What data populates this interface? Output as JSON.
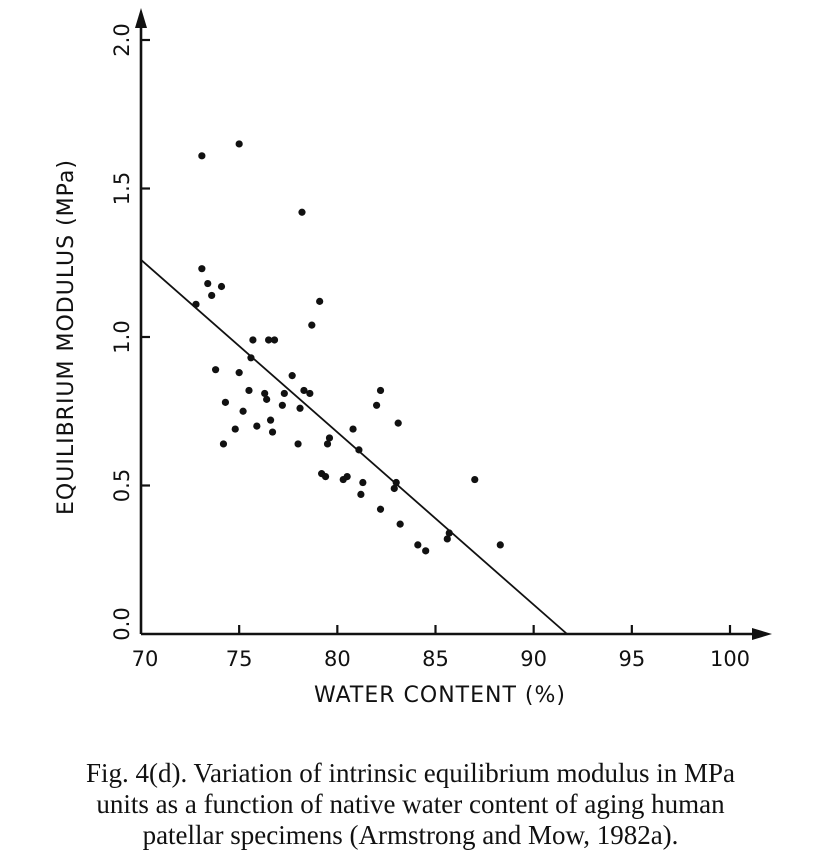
{
  "chart_data": {
    "type": "scatter",
    "title": "",
    "xlabel": "WATER CONTENT (%)",
    "ylabel": "EQUILIBRIUM MODULUS (MPa)",
    "xlim": [
      70,
      100
    ],
    "ylim": [
      0,
      2.0
    ],
    "x_ticks": [
      70,
      75,
      80,
      85,
      90,
      95,
      100
    ],
    "x_tick_labels": [
      "70",
      "75",
      "80",
      "85",
      "90",
      "95",
      "100"
    ],
    "y_ticks": [
      0,
      0.5,
      1.0,
      1.5,
      2.0
    ],
    "y_tick_labels": [
      "0.0",
      "0.5",
      "1.0",
      "1.5",
      "2.0"
    ],
    "grid": false,
    "fit_line": {
      "x": [
        70,
        91.7
      ],
      "y": [
        1.26,
        0.0
      ]
    },
    "points": [
      [
        72.8,
        1.11
      ],
      [
        73.1,
        1.23
      ],
      [
        73.1,
        1.61
      ],
      [
        73.4,
        1.18
      ],
      [
        73.6,
        1.14
      ],
      [
        73.8,
        0.89
      ],
      [
        74.1,
        1.17
      ],
      [
        74.2,
        0.64
      ],
      [
        74.3,
        0.78
      ],
      [
        74.8,
        0.69
      ],
      [
        75.0,
        1.65
      ],
      [
        75.0,
        0.88
      ],
      [
        75.2,
        0.75
      ],
      [
        75.5,
        0.82
      ],
      [
        75.6,
        0.93
      ],
      [
        75.7,
        0.99
      ],
      [
        75.9,
        0.7
      ],
      [
        76.3,
        0.81
      ],
      [
        76.4,
        0.79
      ],
      [
        76.5,
        0.99
      ],
      [
        76.6,
        0.72
      ],
      [
        76.7,
        0.68
      ],
      [
        76.8,
        0.99
      ],
      [
        77.2,
        0.77
      ],
      [
        77.3,
        0.81
      ],
      [
        77.7,
        0.87
      ],
      [
        78.0,
        0.64
      ],
      [
        78.1,
        0.76
      ],
      [
        78.2,
        1.42
      ],
      [
        78.3,
        0.82
      ],
      [
        78.6,
        0.81
      ],
      [
        78.7,
        1.04
      ],
      [
        79.1,
        1.12
      ],
      [
        79.2,
        0.54
      ],
      [
        79.4,
        0.53
      ],
      [
        79.5,
        0.64
      ],
      [
        79.6,
        0.66
      ],
      [
        80.3,
        0.52
      ],
      [
        80.5,
        0.53
      ],
      [
        80.8,
        0.69
      ],
      [
        81.1,
        0.62
      ],
      [
        81.2,
        0.47
      ],
      [
        81.3,
        0.51
      ],
      [
        82.0,
        0.77
      ],
      [
        82.2,
        0.82
      ],
      [
        82.2,
        0.42
      ],
      [
        82.9,
        0.49
      ],
      [
        83.0,
        0.51
      ],
      [
        83.1,
        0.71
      ],
      [
        83.2,
        0.37
      ],
      [
        84.1,
        0.3
      ],
      [
        84.5,
        0.28
      ],
      [
        85.6,
        0.32
      ],
      [
        85.7,
        0.34
      ],
      [
        87.0,
        0.52
      ],
      [
        88.3,
        0.3
      ]
    ]
  },
  "caption": {
    "line1": "Fig. 4(d).  Variation of intrinsic equilibrium modulus in MPa",
    "line2": "units as a function of native water content of aging human",
    "line3": "patellar specimens (Armstrong and Mow, 1982a)."
  }
}
